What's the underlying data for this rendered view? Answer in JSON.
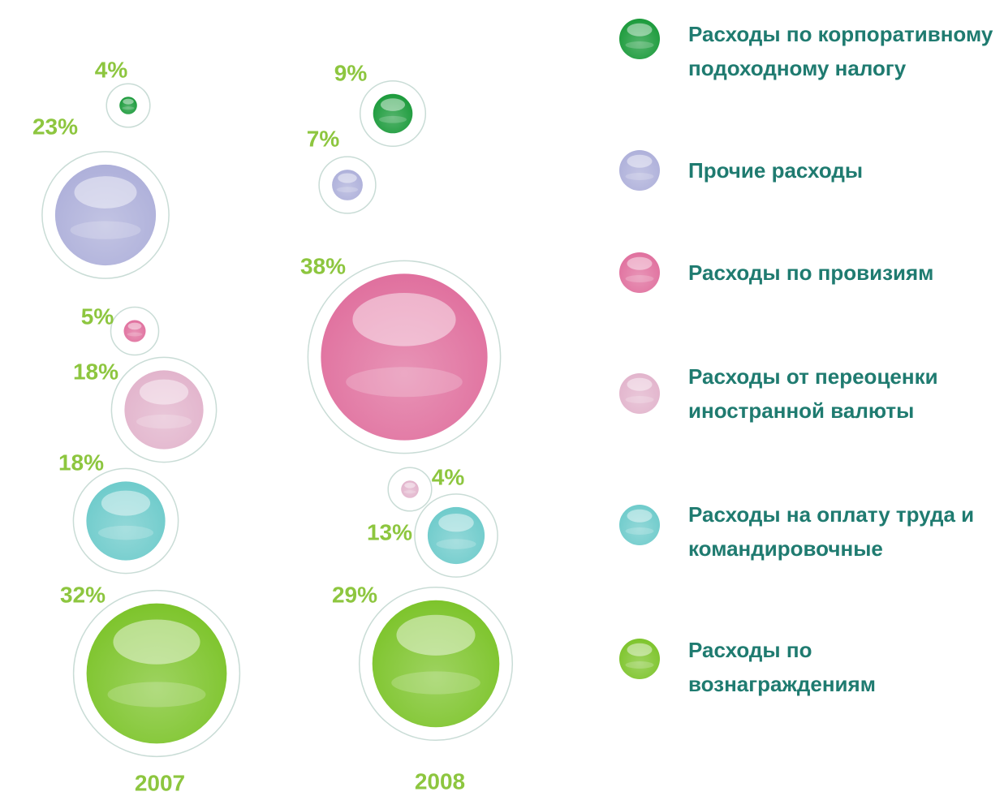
{
  "chart_data": {
    "type": "bubble",
    "categories": [
      "2007",
      "2008"
    ],
    "series": [
      {
        "name": "Расходы по корпоративному подоходному налогу",
        "color": "#1a9a3a",
        "values": [
          4,
          9
        ],
        "value_labels": [
          "4%",
          "9%"
        ]
      },
      {
        "name": "Прочие расходы",
        "color": "#aeb0da",
        "values": [
          23,
          7
        ],
        "value_labels": [
          "23%",
          "7%"
        ]
      },
      {
        "name": "Расходы по провизиям",
        "color": "#e0709e",
        "values": [
          5,
          38
        ],
        "value_labels": [
          "5%",
          "38%"
        ]
      },
      {
        "name": "Расходы от переоценки иностранной валюты",
        "color": "#e2b4cc",
        "values": [
          18,
          4
        ],
        "value_labels": [
          "18%",
          "4%"
        ]
      },
      {
        "name": "Расходы на оплату труда и командировочные",
        "color": "#6ecbcb",
        "values": [
          18,
          13
        ],
        "value_labels": [
          "18%",
          "13%"
        ]
      },
      {
        "name": "Расходы по вознаграждениям",
        "color": "#7dc42b",
        "values": [
          32,
          29
        ],
        "value_labels": [
          "32%",
          "29%"
        ]
      }
    ]
  }
}
